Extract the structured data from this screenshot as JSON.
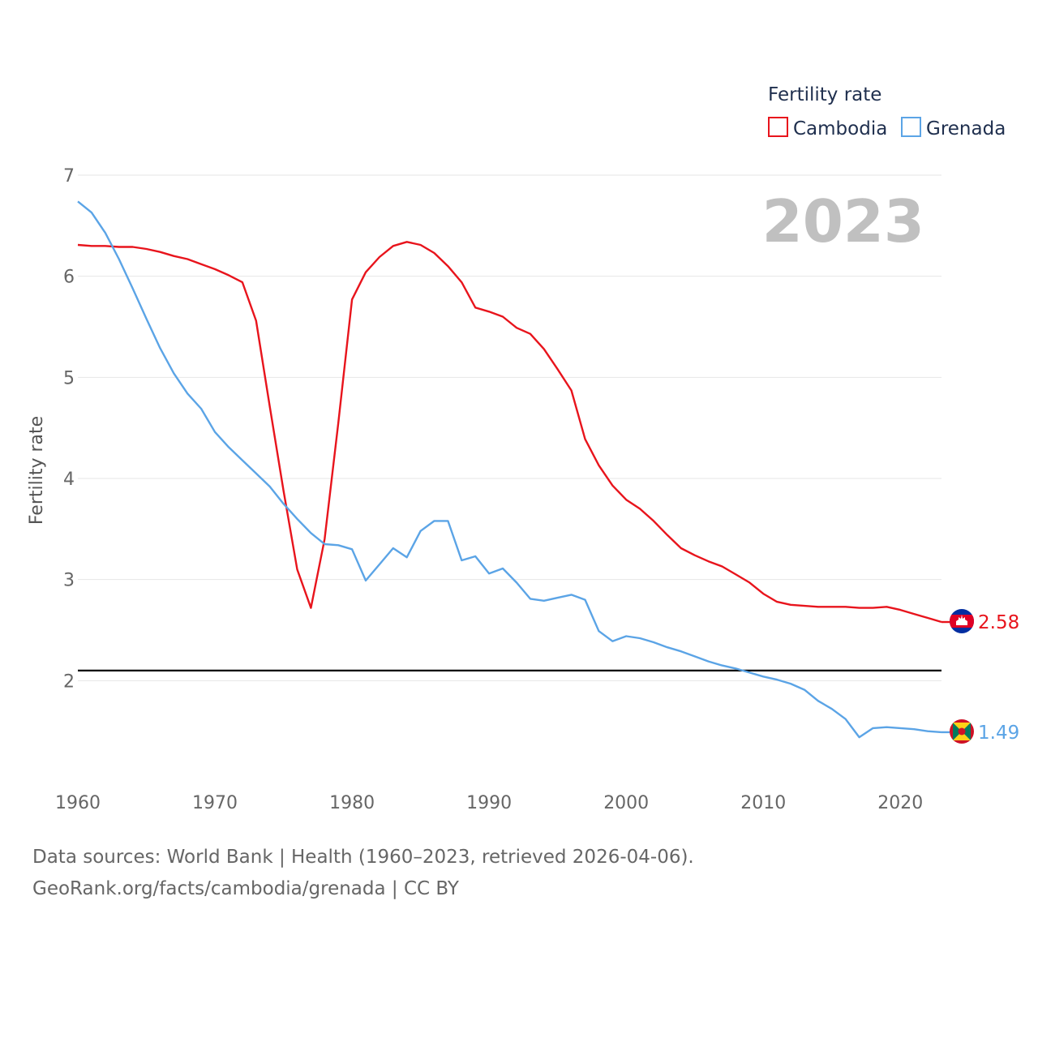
{
  "chart_data": {
    "type": "line",
    "title": "",
    "xlabel": "",
    "ylabel": "Fertility rate",
    "xlim": [
      1960,
      2023
    ],
    "ylim": [
      1.0,
      7.0
    ],
    "xticks": [
      "1960",
      "1970",
      "1980",
      "1990",
      "2000",
      "2010",
      "2020"
    ],
    "yticks": [
      "2",
      "3",
      "4",
      "5",
      "6",
      "7"
    ],
    "year_label": "2023",
    "reference_line": {
      "value": 2.1,
      "color": "#000000"
    },
    "legend": {
      "title": "Fertility rate",
      "position": "top-right"
    },
    "x": [
      1960,
      1961,
      1962,
      1963,
      1964,
      1965,
      1966,
      1967,
      1968,
      1969,
      1970,
      1971,
      1972,
      1973,
      1974,
      1975,
      1976,
      1977,
      1978,
      1979,
      1980,
      1981,
      1982,
      1983,
      1984,
      1985,
      1986,
      1987,
      1988,
      1989,
      1990,
      1991,
      1992,
      1993,
      1994,
      1995,
      1996,
      1997,
      1998,
      1999,
      2000,
      2001,
      2002,
      2003,
      2004,
      2005,
      2006,
      2007,
      2008,
      2009,
      2010,
      2011,
      2012,
      2013,
      2014,
      2015,
      2016,
      2017,
      2018,
      2019,
      2020,
      2021,
      2022,
      2023
    ],
    "series": [
      {
        "name": "Cambodia",
        "color": "#e8141c",
        "end_label": "2.58",
        "flag": "cambodia-flag",
        "values": [
          6.31,
          6.3,
          6.3,
          6.29,
          6.29,
          6.27,
          6.24,
          6.2,
          6.17,
          6.12,
          6.07,
          6.01,
          5.94,
          5.56,
          4.71,
          3.88,
          3.1,
          2.72,
          3.4,
          4.55,
          5.77,
          6.04,
          6.19,
          6.3,
          6.34,
          6.31,
          6.23,
          6.1,
          5.94,
          5.69,
          5.65,
          5.6,
          5.49,
          5.43,
          5.28,
          5.08,
          4.87,
          4.39,
          4.13,
          3.93,
          3.79,
          3.7,
          3.58,
          3.44,
          3.31,
          3.24,
          3.18,
          3.13,
          3.05,
          2.97,
          2.86,
          2.78,
          2.75,
          2.74,
          2.73,
          2.73,
          2.73,
          2.72,
          2.72,
          2.73,
          2.7,
          2.66,
          2.62,
          2.58
        ]
      },
      {
        "name": "Grenada",
        "color": "#5ba4e6",
        "end_label": "1.49",
        "flag": "grenada-flag",
        "values": [
          6.74,
          6.63,
          6.43,
          6.17,
          5.88,
          5.58,
          5.29,
          5.04,
          4.84,
          4.69,
          4.46,
          4.31,
          4.18,
          4.05,
          3.92,
          3.75,
          3.6,
          3.46,
          3.35,
          3.34,
          3.3,
          2.99,
          3.15,
          3.31,
          3.22,
          3.48,
          3.58,
          3.58,
          3.19,
          3.23,
          3.06,
          3.11,
          2.97,
          2.81,
          2.79,
          2.82,
          2.85,
          2.8,
          2.49,
          2.39,
          2.44,
          2.42,
          2.38,
          2.33,
          2.29,
          2.24,
          2.19,
          2.15,
          2.12,
          2.08,
          2.04,
          2.01,
          1.97,
          1.91,
          1.8,
          1.72,
          1.62,
          1.44,
          1.53,
          1.54,
          1.53,
          1.52,
          1.5,
          1.49
        ]
      }
    ]
  },
  "footer": {
    "sources": "Data sources: World Bank | Health (1960–2023, retrieved 2026-04-06).",
    "credit": "GeoRank.org/facts/cambodia/grenada | CC BY"
  }
}
